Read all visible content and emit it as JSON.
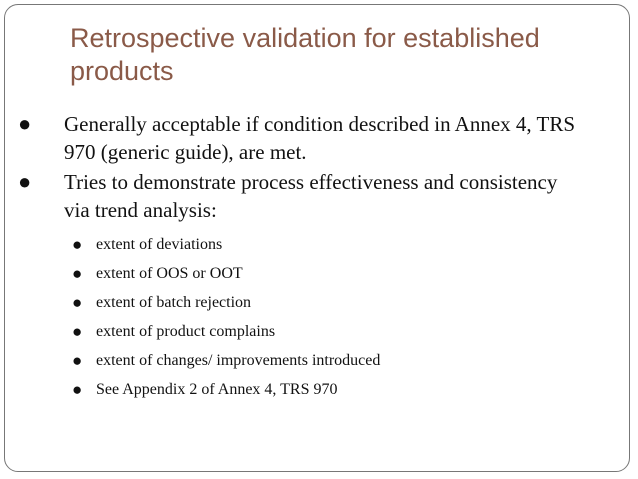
{
  "title": "Retrospective validation for established products",
  "bullets": [
    {
      "text": "Generally acceptable if condition described in Annex 4, TRS 970 (generic guide), are met."
    },
    {
      "text": "Tries to demonstrate process effectiveness and consistency via trend analysis:",
      "sub": [
        "extent of deviations",
        "extent of OOS or OOT",
        "extent of batch rejection",
        "extent of product complains",
        "extent of changes/ improvements introduced",
        "See Appendix 2 of Annex 4, TRS 970"
      ]
    }
  ]
}
